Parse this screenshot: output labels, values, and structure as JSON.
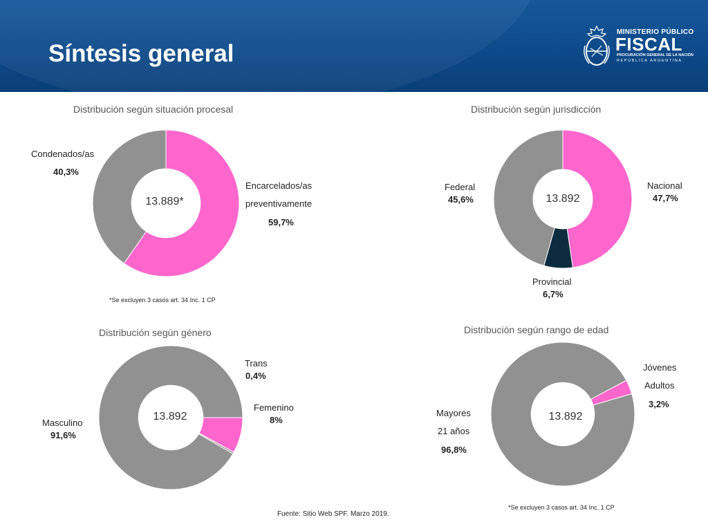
{
  "header": {
    "title": "Síntesis general"
  },
  "logo": {
    "line1": "MINISTERIO PÚBLICO",
    "line2": "FISCAL",
    "line3": "PROCURACIÓN GENERAL DE LA NACIÓN",
    "line4": "REPÚBLICA ARGENTINA"
  },
  "colors": {
    "pink": "#ff66cc",
    "gray": "#919191",
    "navy": "#0b2d3f"
  },
  "chart_data": [
    {
      "type": "pie",
      "title": "Distribución según situación procesal",
      "center_label": "13.889*",
      "slices": [
        {
          "name_lines": [
            "Encarcelados/as",
            "preventivamente"
          ],
          "value_label": "59,7%",
          "value": 59.7,
          "color": "#ff66cc"
        },
        {
          "name_lines": [
            "Condenados/as"
          ],
          "value_label": "40,3%",
          "value": 40.3,
          "color": "#919191"
        }
      ],
      "note": "*Se excluyen 3 casos art. 34 Inc. 1 CP"
    },
    {
      "type": "pie",
      "title": "Distribución según jurisdicción",
      "center_label": "13.892",
      "slices": [
        {
          "name_lines": [
            "Nacional"
          ],
          "value_label": "47,7%",
          "value": 47.7,
          "color": "#ff66cc"
        },
        {
          "name_lines": [
            "Provincial"
          ],
          "value_label": "6,7%",
          "value": 6.7,
          "color": "#0b2d3f"
        },
        {
          "name_lines": [
            "Federal"
          ],
          "value_label": "45,6%",
          "value": 45.6,
          "color": "#919191"
        }
      ]
    },
    {
      "type": "pie",
      "title": "Distribución según género",
      "center_label": "13.892",
      "slices": [
        {
          "name_lines": [
            "Masculino"
          ],
          "value_label": "91,6%",
          "value": 91.6,
          "color": "#919191"
        },
        {
          "name_lines": [
            "Trans"
          ],
          "value_label": "0,4%",
          "value": 0.4,
          "color": "#919191"
        },
        {
          "name_lines": [
            "Femenino"
          ],
          "value_label": "8%",
          "value": 8,
          "color": "#ff66cc"
        }
      ]
    },
    {
      "type": "pie",
      "title": "Distribución según rango de edad",
      "center_label": "13.892",
      "slices": [
        {
          "name_lines": [
            "Mayores",
            "21 años"
          ],
          "value_label": "96,8%",
          "value": 96.8,
          "color": "#919191"
        },
        {
          "name_lines": [
            "Jóvenes",
            "Adultos"
          ],
          "value_label": "3,2%",
          "value": 3.2,
          "color": "#ff66cc"
        }
      ],
      "note": "*Se excluyen 3 casos art. 34 Inc. 1 CP"
    }
  ],
  "footer": {
    "source": "Fuente: Sitio Web SPF. Marzo 2019."
  }
}
